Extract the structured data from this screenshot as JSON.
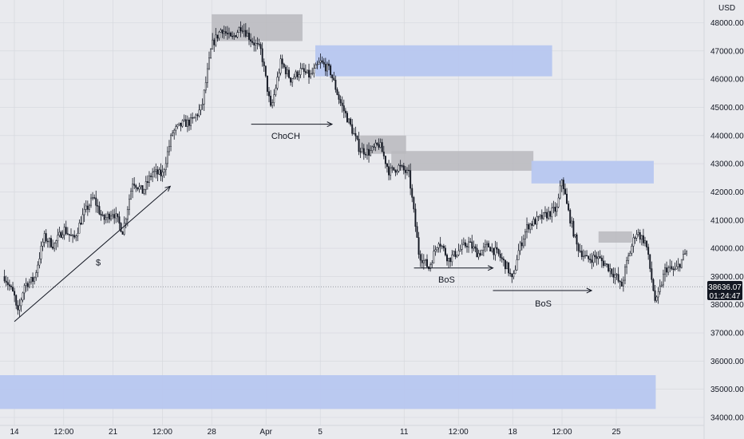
{
  "chart_data": {
    "type": "candlestick",
    "currency_label": "USD",
    "ylim": [
      33700,
      48600
    ],
    "y_ticks": [
      34000,
      35000,
      36000,
      37000,
      38000,
      39000,
      40000,
      41000,
      42000,
      43000,
      44000,
      45000,
      46000,
      47000,
      48000
    ],
    "y_tick_labels": [
      "34000.00",
      "35000.00",
      "36000.00",
      "37000.00",
      "38000.00",
      "39000.00",
      "40000.00",
      "41000.00",
      "42000.00",
      "43000.00",
      "44000.00",
      "45000.00",
      "46000.00",
      "47000.00",
      "48000.00"
    ],
    "x_ticks": [
      {
        "label": "14",
        "t": 1
      },
      {
        "label": "12:00",
        "t": 6
      },
      {
        "label": "21",
        "t": 11
      },
      {
        "label": "12:00",
        "t": 16
      },
      {
        "label": "28",
        "t": 21
      },
      {
        "label": "Apr",
        "t": 26.5
      },
      {
        "label": "5",
        "t": 32
      },
      {
        "label": "11",
        "t": 40.5
      },
      {
        "label": "12:00",
        "t": 46
      },
      {
        "label": "18",
        "t": 51.5
      },
      {
        "label": "12:00",
        "t": 56.5
      },
      {
        "label": "25",
        "t": 62
      }
    ],
    "x_range": [
      0,
      72.5
    ],
    "last_price": 38636.07,
    "last_price_label": "38636.07",
    "countdown_label": "01:24:47",
    "path": [
      [
        0,
        39000
      ],
      [
        1,
        38300
      ],
      [
        1.3,
        37600
      ],
      [
        2,
        38700
      ],
      [
        3,
        38900
      ],
      [
        4,
        40400
      ],
      [
        5,
        40100
      ],
      [
        6,
        40700
      ],
      [
        7,
        40300
      ],
      [
        8,
        41200
      ],
      [
        9,
        41800
      ],
      [
        10,
        41000
      ],
      [
        11,
        41300
      ],
      [
        12,
        40600
      ],
      [
        13,
        42400
      ],
      [
        14,
        42000
      ],
      [
        15,
        42700
      ],
      [
        16,
        42600
      ],
      [
        17,
        44100
      ],
      [
        18,
        44400
      ],
      [
        19,
        44500
      ],
      [
        20,
        45000
      ],
      [
        21,
        47200
      ],
      [
        22,
        47800
      ],
      [
        23,
        47400
      ],
      [
        24,
        47900
      ],
      [
        25,
        47400
      ],
      [
        26,
        47000
      ],
      [
        27,
        44900
      ],
      [
        28,
        46600
      ],
      [
        29,
        46000
      ],
      [
        30,
        46300
      ],
      [
        31,
        46100
      ],
      [
        32,
        46600
      ],
      [
        33,
        46300
      ],
      [
        34,
        45200
      ],
      [
        35,
        44400
      ],
      [
        36,
        43500
      ],
      [
        37,
        43400
      ],
      [
        38,
        43700
      ],
      [
        39,
        42700
      ],
      [
        40,
        42900
      ],
      [
        41,
        42600
      ],
      [
        42,
        39800
      ],
      [
        43,
        39300
      ],
      [
        44,
        40300
      ],
      [
        45,
        39600
      ],
      [
        46,
        39900
      ],
      [
        47,
        40200
      ],
      [
        48,
        39800
      ],
      [
        49,
        40100
      ],
      [
        50,
        39800
      ],
      [
        51,
        39300
      ],
      [
        51.5,
        38800
      ],
      [
        52,
        39800
      ],
      [
        53,
        40800
      ],
      [
        54,
        41000
      ],
      [
        55,
        41200
      ],
      [
        56,
        41400
      ],
      [
        56.5,
        42500
      ],
      [
        57,
        41500
      ],
      [
        58,
        40100
      ],
      [
        59,
        39600
      ],
      [
        60,
        39700
      ],
      [
        61,
        39400
      ],
      [
        62,
        39000
      ],
      [
        62.5,
        38600
      ],
      [
        63,
        39400
      ],
      [
        64,
        40600
      ],
      [
        65,
        40200
      ],
      [
        66,
        38000
      ],
      [
        67,
        39300
      ],
      [
        68,
        39200
      ],
      [
        69,
        39800
      ],
      [
        70,
        40200
      ],
      [
        71,
        39500
      ],
      [
        72,
        38800
      ],
      [
        72.5,
        38636
      ]
    ],
    "zones": [
      {
        "type": "supply",
        "t1": 21,
        "t2": 30.2,
        "p1": 47350,
        "p2": 48300
      },
      {
        "type": "demand",
        "t1": 31.5,
        "t2": 55.5,
        "p1": 46100,
        "p2": 47200
      },
      {
        "type": "supply",
        "t1": 36,
        "t2": 40.7,
        "p1": 43350,
        "p2": 44000
      },
      {
        "type": "supply",
        "t1": 39.2,
        "t2": 53.6,
        "p1": 42750,
        "p2": 43450
      },
      {
        "type": "demand",
        "t1": 53.4,
        "t2": 65.8,
        "p1": 42300,
        "p2": 43100
      },
      {
        "type": "supply",
        "t1": 60.2,
        "t2": 63.6,
        "p1": 40200,
        "p2": 40600
      },
      {
        "type": "demand",
        "t1": -1,
        "t2": 66,
        "p1": 34300,
        "p2": 35500
      }
    ],
    "annotations": [
      {
        "label": "$",
        "type": "arrow",
        "t1": 1,
        "p1": 37400,
        "t2": 16.8,
        "p2": 42200,
        "label_t": 9.5,
        "label_p": 39500
      },
      {
        "label": "ChoCH",
        "type": "arrow",
        "t1": 25,
        "p1": 44400,
        "t2": 33.2,
        "p2": 44400,
        "label_t": 28.5,
        "label_p": 44000
      },
      {
        "label": "BoS",
        "type": "arrow",
        "t1": 41.5,
        "p1": 39300,
        "t2": 49.5,
        "p2": 39300,
        "label_t": 44.8,
        "label_p": 38900
      },
      {
        "label": "BoS",
        "type": "arrow",
        "t1": 49.5,
        "p1": 38500,
        "t2": 59.5,
        "p2": 38500,
        "label_t": 54.6,
        "label_p": 38050
      }
    ],
    "colors": {
      "background": "#e9eaee",
      "candle": "#131722",
      "supply_zone": "#b8b9bd",
      "demand_zone": "#b7c7ef",
      "grid": "#d4d6dc",
      "last_price_line": "#7b7f88",
      "price_label_bg": "#131722",
      "price_label_text": "#ffffff"
    }
  }
}
